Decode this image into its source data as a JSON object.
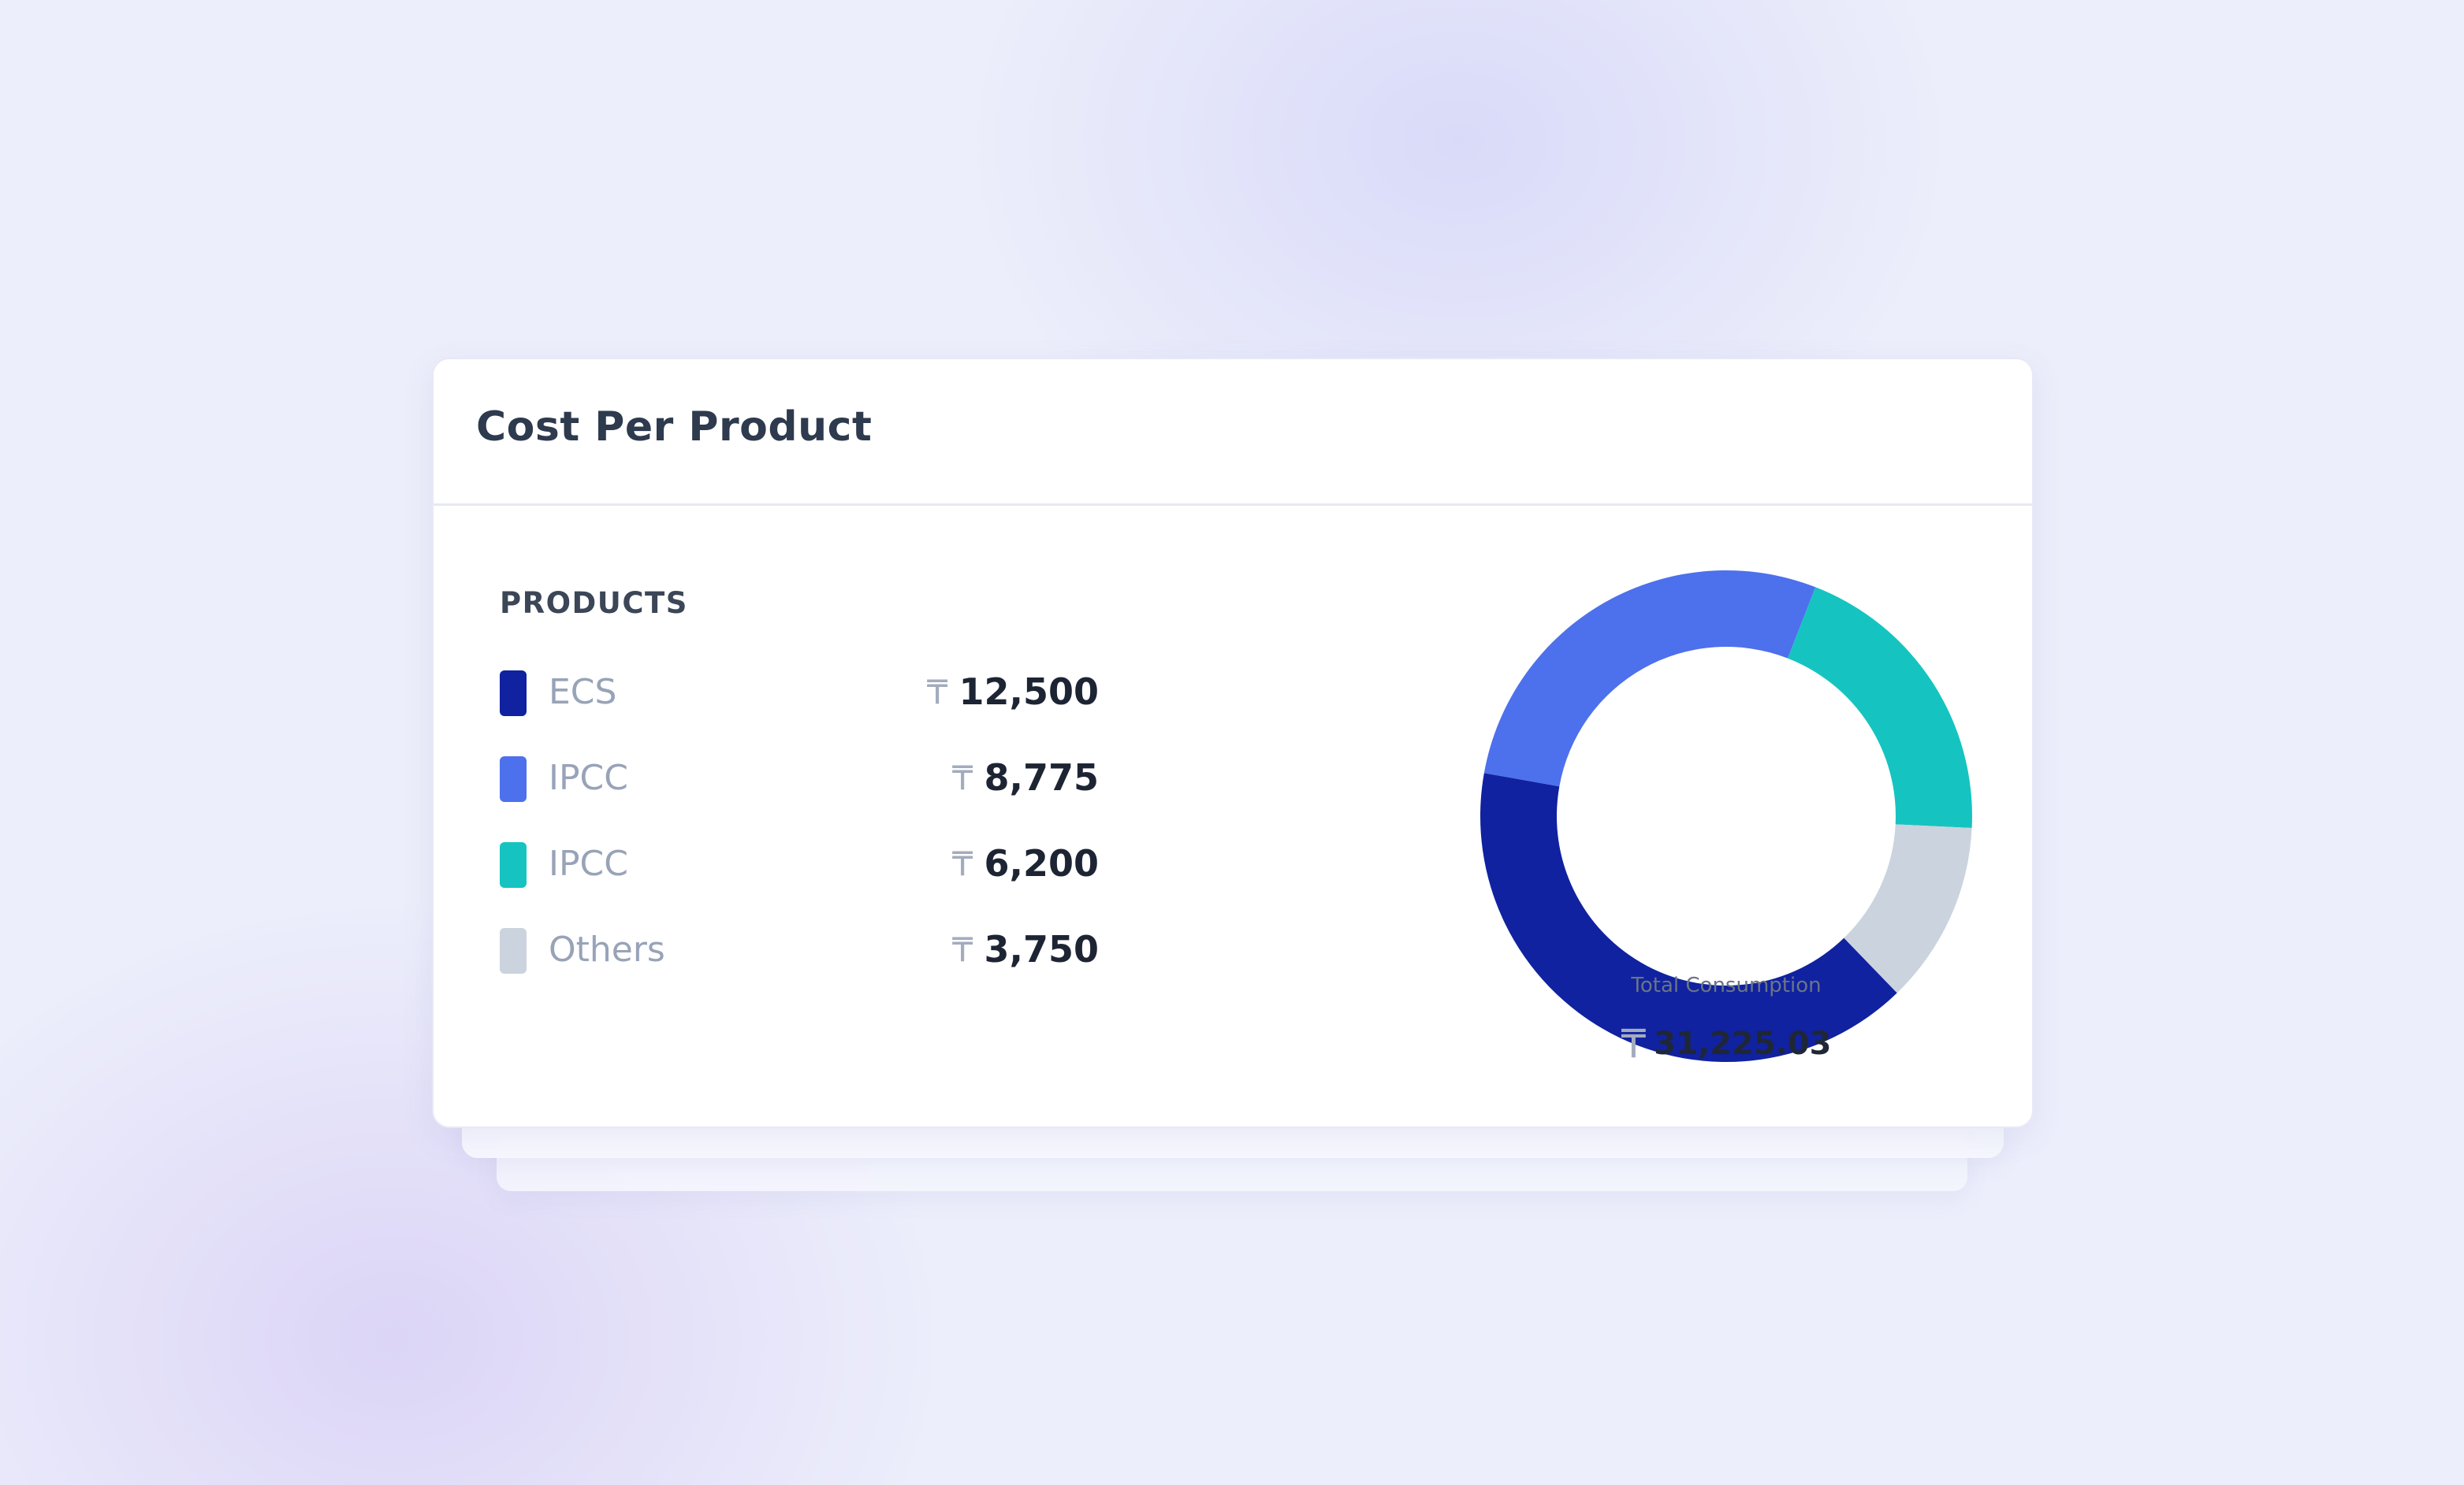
{
  "card": {
    "title": "Cost Per Product"
  },
  "legend": {
    "heading": "PRODUCTS",
    "currency_symbol": "₸"
  },
  "center": {
    "label": "Total Consumption",
    "currency_symbol": "₸",
    "total": "31,225.03"
  },
  "chart_data": {
    "type": "pie",
    "variant": "donut",
    "title": "Cost Per Product",
    "categories": [
      "ECS",
      "IPCC",
      "IPCC",
      "Others"
    ],
    "values": [
      12500,
      8775,
      6200,
      3750
    ],
    "display_values": [
      "12,500",
      "8,775",
      "6,200",
      "3,750"
    ],
    "colors": [
      "#1022a0",
      "#4d70ec",
      "#15c4c0",
      "#cbd3de"
    ],
    "legend": [
      "ECS",
      "IPCC",
      "IPCC",
      "Others"
    ],
    "center_label": "Total Consumption",
    "center_value": "31,225.03",
    "start_angle_deg": 136,
    "direction": "clockwise"
  }
}
